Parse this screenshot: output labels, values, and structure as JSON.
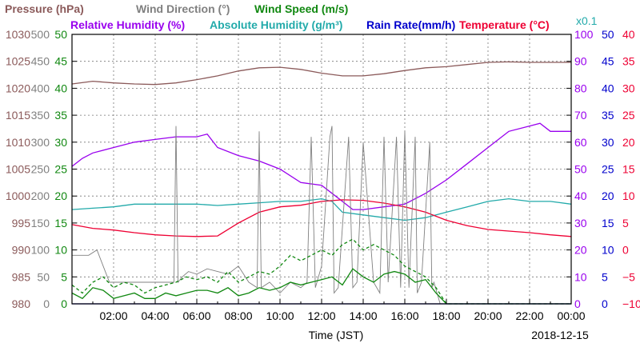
{
  "chart_data": {
    "type": "line",
    "xlabel": "Time (JST)",
    "date_label": "2018-12-15",
    "x_ticks": [
      "02:00",
      "04:00",
      "06:00",
      "08:00",
      "10:00",
      "12:00",
      "14:00",
      "16:00",
      "18:00",
      "20:00",
      "22:00",
      "00:00"
    ],
    "x_range_hours": [
      0,
      24
    ],
    "grid": true,
    "legend_row1": [
      {
        "name": "Pressure (hPa)",
        "color": "#8b5a5a"
      },
      {
        "name": "Wind Direction (°)",
        "color": "#808080"
      },
      {
        "name": "Wind Speed (m/s)",
        "color": "#118811"
      }
    ],
    "legend_row2": [
      {
        "name": "Relative Humidity (%)",
        "color": "#9900ee"
      },
      {
        "name": "Absolute Humidity (g/m³)",
        "color": "#22aaaa"
      },
      {
        "name": "Rain Rate(mm/h)",
        "color": "#0000cc"
      },
      {
        "name": "Temperature (°C)",
        "color": "#ee0033"
      }
    ],
    "abs_humidity_scale_note": "x0.1",
    "axes": {
      "pressure": {
        "range": [
          980,
          1030
        ],
        "ticks": [
          "1030",
          "1025",
          "1020",
          "1015",
          "1010",
          "1005",
          "1000",
          "995",
          "990",
          "985",
          "980"
        ],
        "color": "#8b5a5a"
      },
      "wind_direction": {
        "range": [
          0,
          500
        ],
        "ticks": [
          "500",
          "450",
          "400",
          "350",
          "300",
          "250",
          "200",
          "150",
          "100",
          "50",
          "0"
        ],
        "color": "#808080"
      },
      "wind_speed": {
        "range": [
          0,
          50
        ],
        "ticks": [
          "50",
          "45",
          "40",
          "35",
          "30",
          "25",
          "20",
          "15",
          "10",
          "5",
          "0"
        ],
        "color": "#118811"
      },
      "humidity": {
        "range": [
          0,
          100
        ],
        "ticks": [
          "100",
          "90",
          "80",
          "70",
          "60",
          "50",
          "40",
          "30",
          "20",
          "10",
          "0"
        ],
        "color": "#9900ee"
      },
      "rain_rate": {
        "range": [
          0,
          50
        ],
        "ticks": [
          "50",
          "45",
          "40",
          "35",
          "30",
          "25",
          "20",
          "15",
          "10",
          "5",
          "0"
        ],
        "color": "#0000cc"
      },
      "temperature": {
        "range": [
          -10,
          40
        ],
        "ticks": [
          "40",
          "35",
          "30",
          "25",
          "20",
          "15",
          "10",
          "5",
          "0",
          "−5",
          "−10"
        ],
        "color": "#ee0033"
      }
    },
    "series": [
      {
        "name": "Pressure (hPa)",
        "axis": "pressure",
        "color": "#8b5a5a",
        "x": [
          0,
          1,
          2,
          3,
          4,
          5,
          6,
          7,
          8,
          9,
          10,
          11,
          12,
          13,
          14,
          15,
          16,
          17,
          18,
          19,
          20,
          21,
          22,
          23,
          24
        ],
        "y": [
          1020.8,
          1021.3,
          1021.0,
          1020.8,
          1020.7,
          1021.0,
          1021.6,
          1022.3,
          1023.2,
          1023.8,
          1023.9,
          1023.5,
          1022.8,
          1022.3,
          1022.3,
          1022.7,
          1023.3,
          1023.8,
          1024.0,
          1024.4,
          1024.8,
          1024.9,
          1024.8,
          1024.8,
          1024.8
        ]
      },
      {
        "name": "Relative Humidity (%)",
        "axis": "humidity",
        "color": "#9900ee",
        "x": [
          0,
          0.5,
          1,
          2,
          3,
          4,
          5,
          6,
          6.5,
          7,
          8,
          9,
          10,
          11,
          12,
          12.5,
          13,
          13.5,
          14,
          15,
          16,
          17,
          18,
          19,
          20,
          21,
          22,
          22.5,
          23,
          24
        ],
        "y": [
          51,
          54,
          56,
          58,
          60,
          61,
          62,
          62,
          63,
          58,
          55,
          53,
          50,
          45,
          44,
          41,
          38,
          35,
          35,
          36,
          37,
          41,
          46,
          52,
          58,
          64,
          66,
          67,
          64,
          64
        ]
      },
      {
        "name": "Absolute Humidity (g/m³)",
        "axis": "humidity",
        "color": "#22aaaa",
        "x": [
          0,
          1,
          2,
          3,
          4,
          5,
          6,
          7,
          8,
          9,
          10,
          11,
          12,
          12.5,
          13,
          14,
          15,
          16,
          17,
          18,
          19,
          20,
          21,
          22,
          23,
          24
        ],
        "y": [
          35,
          35.5,
          36,
          37,
          37,
          37,
          37,
          36.5,
          37,
          37.5,
          38,
          38,
          39,
          38,
          34,
          33,
          32,
          31,
          32,
          34,
          36,
          38,
          39,
          38,
          38,
          37
        ]
      },
      {
        "name": "Temperature (°C)",
        "axis": "temperature",
        "color": "#ee0033",
        "x": [
          0,
          1,
          2,
          3,
          4,
          5,
          6,
          7,
          8,
          9,
          10,
          11,
          12,
          13,
          14,
          15,
          16,
          17,
          18,
          19,
          20,
          21,
          22,
          23,
          24
        ],
        "y": [
          4.7,
          4.0,
          3.7,
          3.2,
          2.8,
          2.6,
          2.5,
          2.6,
          5.0,
          7.0,
          8.0,
          8.3,
          9.0,
          9.3,
          9.2,
          8.7,
          8.0,
          7.0,
          5.5,
          4.5,
          3.8,
          3.5,
          3.2,
          2.8,
          2.5
        ]
      },
      {
        "name": "Wind Direction (°)",
        "axis": "wind_direction",
        "color": "#808080",
        "x": [
          0,
          0.8,
          1.2,
          1.5,
          1.8,
          2.5,
          3.5,
          4.3,
          4.9,
          5.0,
          5.1,
          5.3,
          5.6,
          6.0,
          6.5,
          7.0,
          7.5,
          8.0,
          8.5,
          8.9,
          9.0,
          9.1,
          9.5,
          10.0,
          10.5,
          11.0,
          11.3,
          11.5,
          11.7,
          12.0,
          12.4,
          12.5,
          12.6,
          12.8,
          13.3,
          13.5,
          13.7,
          14.0,
          14.5,
          14.8,
          15.0,
          15.2,
          15.6,
          15.8,
          16.0,
          16.2,
          16.5,
          16.6,
          16.8,
          17.2,
          17.3,
          17.4,
          17.7,
          18.0,
          18.5,
          24
        ],
        "y": [
          90,
          90,
          100,
          70,
          40,
          40,
          40,
          40,
          40,
          330,
          40,
          50,
          60,
          55,
          65,
          60,
          55,
          70,
          40,
          30,
          320,
          30,
          40,
          20,
          40,
          30,
          40,
          310,
          30,
          70,
          310,
          330,
          20,
          30,
          310,
          30,
          40,
          300,
          40,
          20,
          310,
          40,
          310,
          30,
          320,
          30,
          310,
          20,
          40,
          300,
          30,
          40,
          0,
          0,
          0,
          0
        ]
      },
      {
        "name": "Wind Speed (m/s)",
        "axis": "wind_speed",
        "color": "#118811",
        "x": [
          0,
          0.5,
          1,
          1.5,
          2,
          2.5,
          3,
          3.5,
          4,
          4.5,
          5,
          5.5,
          6,
          6.5,
          7,
          7.5,
          8,
          8.5,
          9,
          9.5,
          10,
          10.5,
          11,
          11.5,
          12,
          12.5,
          13,
          13.5,
          14,
          14.5,
          15,
          15.5,
          16,
          16.5,
          17,
          17.5,
          18,
          24
        ],
        "y": [
          2.0,
          1.0,
          3.0,
          2.5,
          1.0,
          1.5,
          2.0,
          1.0,
          1.0,
          2.0,
          1.5,
          2.0,
          2.5,
          2.5,
          2.0,
          3.0,
          1.5,
          2.0,
          3.0,
          2.5,
          3.0,
          4.0,
          3.5,
          4.0,
          4.5,
          5.0,
          3.5,
          6.5,
          5.0,
          4.0,
          5.5,
          6.0,
          5.5,
          4.0,
          4.5,
          2.0,
          0,
          0
        ]
      },
      {
        "name": "Wind Speed gust (m/s)",
        "axis": "wind_speed",
        "color": "#118811",
        "dashed": true,
        "x": [
          0,
          0.5,
          1,
          1.5,
          2,
          2.5,
          3,
          3.5,
          4,
          4.5,
          5,
          5.5,
          6,
          6.5,
          7,
          7.5,
          8,
          8.5,
          9,
          9.5,
          10,
          10.5,
          11,
          11.5,
          12,
          12.5,
          13,
          13.5,
          14,
          14.5,
          15,
          15.5,
          16,
          16.5,
          17,
          17.5,
          18,
          24
        ],
        "y": [
          3.5,
          2.0,
          4.0,
          5.0,
          3.0,
          4.0,
          3.5,
          2.0,
          3.0,
          3.5,
          4.0,
          5.0,
          4.5,
          5.0,
          4.0,
          6.0,
          4.0,
          5.0,
          6.0,
          5.5,
          7.0,
          9.0,
          8.0,
          9.0,
          10.0,
          9.0,
          11.0,
          12.0,
          10.0,
          11.0,
          10.0,
          9.0,
          7.0,
          6.0,
          5.0,
          3.0,
          0,
          0
        ]
      },
      {
        "name": "Rain Rate(mm/h)",
        "axis": "rain_rate",
        "color": "#0000cc",
        "x": [
          0,
          24
        ],
        "y": [
          0,
          0
        ]
      }
    ]
  }
}
